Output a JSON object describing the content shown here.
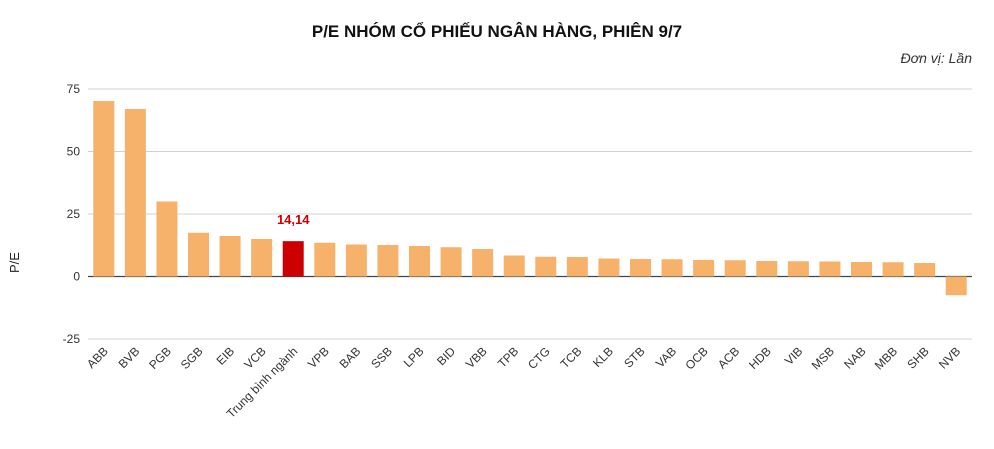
{
  "chart_data": {
    "type": "bar",
    "title": "P/E NHÓM CỔ PHIẾU NGÂN HÀNG, PHIÊN 9/7",
    "unit_label": "Đơn vị: Lần",
    "xlabel": "",
    "ylabel": "P/E",
    "ylim": [
      -25,
      75
    ],
    "yticks": [
      75,
      50,
      25,
      0,
      -25
    ],
    "grid": true,
    "categories": [
      "ABB",
      "BVB",
      "PGB",
      "SGB",
      "EIB",
      "VCB",
      "Trung bình ngành",
      "VPB",
      "BAB",
      "SSB",
      "LPB",
      "BID",
      "VBB",
      "TPB",
      "CTG",
      "TCB",
      "KLB",
      "STB",
      "VAB",
      "OCB",
      "ACB",
      "HDB",
      "VIB",
      "MSB",
      "NAB",
      "MBB",
      "SHB",
      "NVB"
    ],
    "values": [
      70.2,
      67.0,
      30.0,
      17.5,
      16.2,
      15.0,
      14.14,
      13.5,
      12.8,
      12.6,
      12.2,
      11.7,
      11.0,
      8.4,
      7.9,
      7.8,
      7.2,
      7.0,
      6.9,
      6.6,
      6.5,
      6.2,
      6.1,
      6.0,
      5.8,
      5.7,
      5.4,
      -7.5
    ],
    "highlight_category": "Trung bình ngành",
    "highlight_label": "14,14",
    "colors": {
      "bar": "#F6B26B",
      "highlight": "#CC0000",
      "highlight_label": "#CC0000",
      "grid": "#D0D0D0",
      "axis": "#444444"
    }
  }
}
